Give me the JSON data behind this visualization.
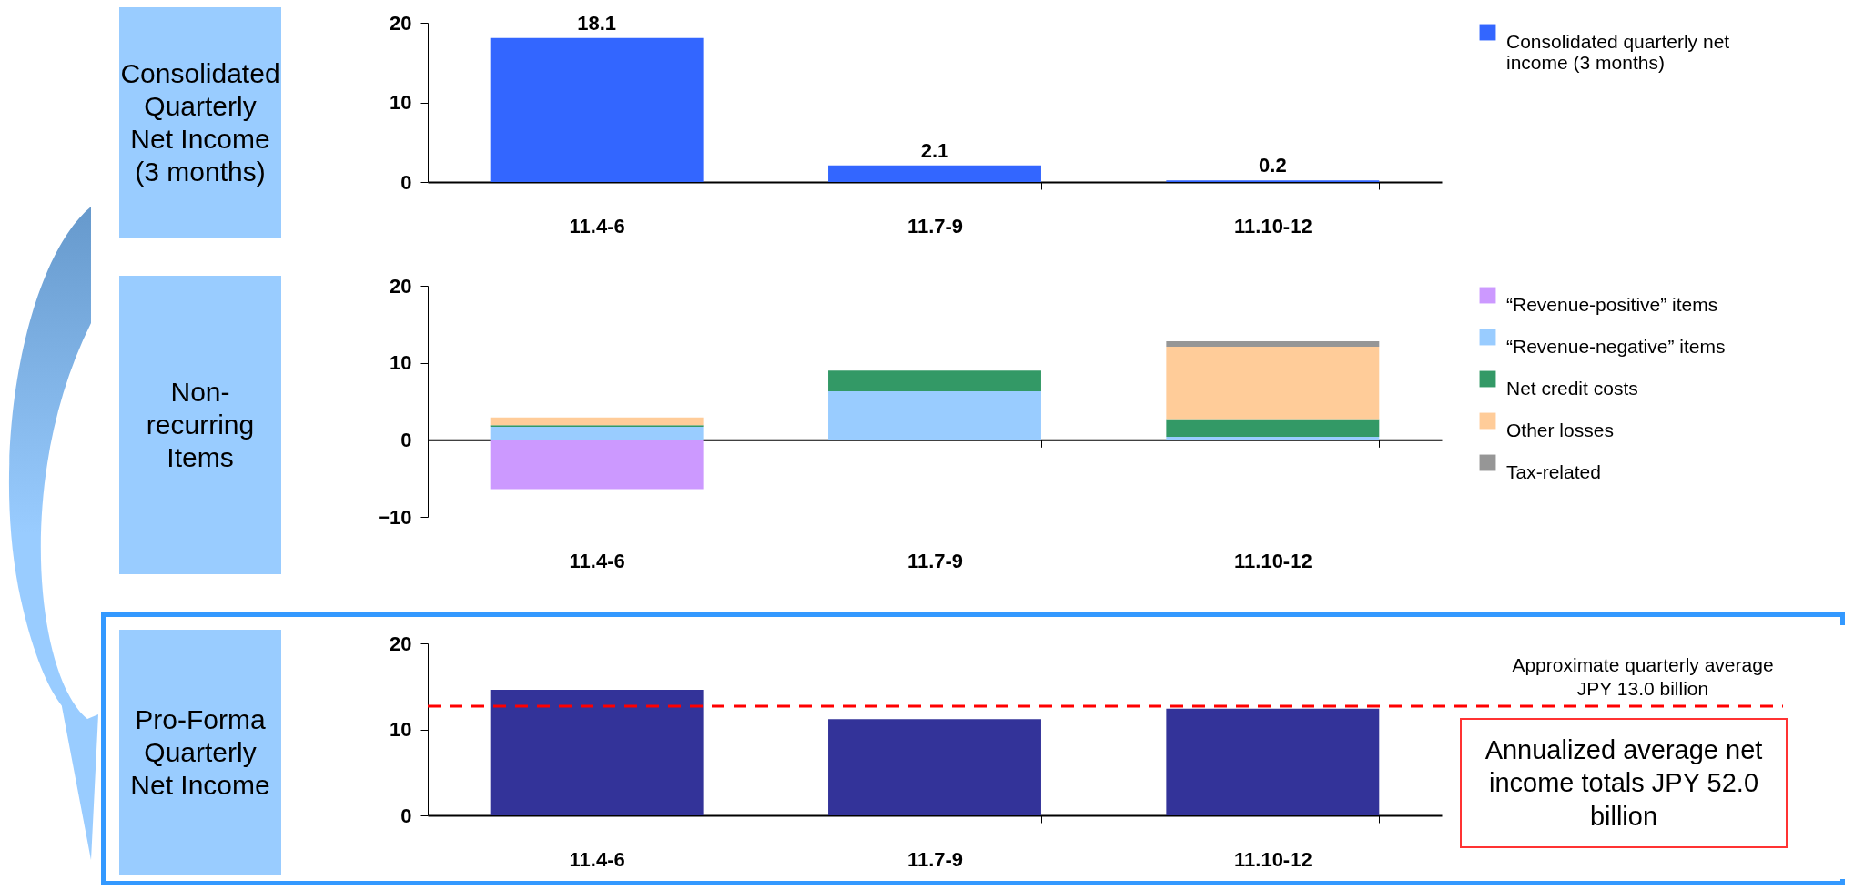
{
  "chart_data": [
    {
      "type": "bar",
      "title": "Consolidated Quarterly Net Income (3 months)",
      "categories": [
        "11.4-6",
        "11.7-9",
        "11.10-12"
      ],
      "series": [
        {
          "name": "Consolidated quarterly net income (3 months)",
          "color": "#3366ff",
          "values": [
            18.1,
            2.1,
            0.2
          ]
        }
      ],
      "ylim": [
        0,
        20
      ],
      "yticks": [
        0,
        10,
        20
      ],
      "data_labels": true,
      "legend": "right"
    },
    {
      "type": "bar",
      "title": "Non-recurring Items",
      "categories": [
        "11.4-6",
        "11.7-9",
        "11.10-12"
      ],
      "stacked": true,
      "series": [
        {
          "name": "“Revenue-positive” items",
          "color": "#cc99ff",
          "values": [
            -6.4,
            null,
            null
          ]
        },
        {
          "name": "“Revenue-negative” items",
          "color": "#99ccff",
          "values": [
            1.7,
            6.3,
            0.4
          ]
        },
        {
          "name": "Net credit costs",
          "color": "#339966",
          "values": [
            0.2,
            2.7,
            2.3
          ]
        },
        {
          "name": "Other losses",
          "color": "#ffcc99",
          "values": [
            1.0,
            null,
            9.4
          ]
        },
        {
          "name": "Tax-related",
          "color": "#969696",
          "values": [
            null,
            null,
            0.7
          ]
        }
      ],
      "ylim": [
        -10,
        20
      ],
      "yticks": [
        -10,
        0,
        10,
        20
      ],
      "legend": "right"
    },
    {
      "type": "bar",
      "title": "Pro-Forma Quarterly Net Income",
      "categories": [
        "11.4-6",
        "11.7-9",
        "11.10-12"
      ],
      "series": [
        {
          "color": "#333399",
          "values": [
            14.6,
            11.2,
            12.4
          ]
        }
      ],
      "ylim": [
        0,
        20
      ],
      "yticks": [
        0,
        10,
        20
      ],
      "ref_lines": [
        {
          "axis": "y",
          "value": 12.7,
          "label": "Approximate quarterly average JPY 13.0 billion",
          "color": "#ff0000",
          "line_style": "dashed"
        }
      ],
      "annotations": [
        "Annualized average net income totals JPY 52.0 billion"
      ]
    }
  ]
}
